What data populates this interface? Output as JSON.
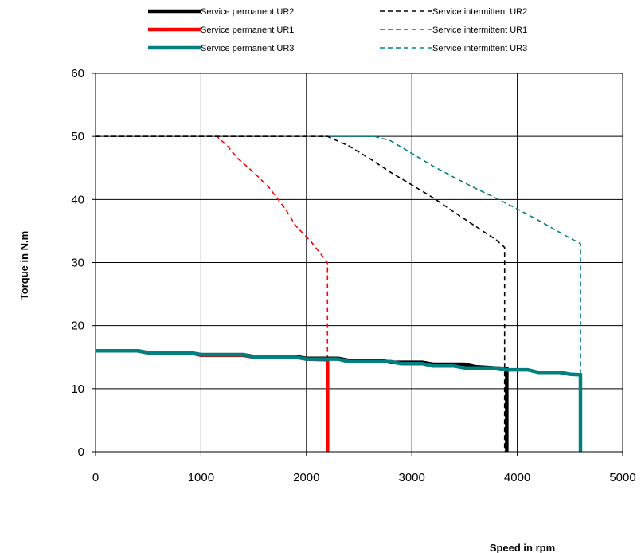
{
  "chart_data": {
    "type": "line",
    "title": "",
    "xlabel": "Speed in rpm",
    "ylabel": "Torque in N.m",
    "xlim": [
      0,
      5000
    ],
    "ylim": [
      0,
      60
    ],
    "x_ticks": [
      0,
      1000,
      2000,
      3000,
      4000,
      5000
    ],
    "y_ticks": [
      0,
      10,
      20,
      30,
      40,
      50,
      60
    ],
    "grid": true,
    "legend_position": "top",
    "series": [
      {
        "name": "Service permanent UR2",
        "color": "#000000",
        "style": "solid",
        "x": [
          0,
          400,
          500,
          900,
          1000,
          1400,
          1500,
          1900,
          2000,
          2300,
          2400,
          2700,
          2800,
          3100,
          3200,
          3500,
          3600,
          3900,
          3900
        ],
        "y": [
          16,
          16,
          15.7,
          15.7,
          15.4,
          15.4,
          15.1,
          15.1,
          14.8,
          14.8,
          14.5,
          14.5,
          14.2,
          14.2,
          13.9,
          13.9,
          13.5,
          13.2,
          0
        ]
      },
      {
        "name": "Service permanent UR1",
        "color": "#ff0000",
        "style": "solid",
        "x": [
          0,
          400,
          500,
          900,
          1000,
          1400,
          1500,
          1900,
          2000,
          2200,
          2200
        ],
        "y": [
          16,
          16,
          15.7,
          15.7,
          15.3,
          15.3,
          15.0,
          15.0,
          14.7,
          14.6,
          0
        ]
      },
      {
        "name": "Service permanent UR3",
        "color": "#008080",
        "style": "solid",
        "x": [
          0,
          400,
          500,
          900,
          1000,
          1400,
          1500,
          1900,
          2000,
          2300,
          2400,
          2800,
          2900,
          3100,
          3200,
          3400,
          3500,
          3800,
          3900,
          4100,
          4200,
          4400,
          4500,
          4600,
          4600
        ],
        "y": [
          16,
          16,
          15.7,
          15.7,
          15.4,
          15.4,
          15.0,
          15.0,
          14.7,
          14.7,
          14.3,
          14.3,
          14.0,
          14.0,
          13.6,
          13.6,
          13.3,
          13.3,
          13.0,
          13.0,
          12.6,
          12.6,
          12.3,
          12.2,
          0
        ]
      },
      {
        "name": "Service intermittent UR2",
        "color": "#000000",
        "style": "dashed",
        "x": [
          0,
          2200,
          2400,
          2600,
          2800,
          3000,
          3200,
          3400,
          3600,
          3800,
          3880,
          3880
        ],
        "y": [
          50,
          50,
          48.5,
          46.5,
          44.3,
          42.3,
          40.3,
          38,
          35.8,
          33.6,
          32.4,
          0
        ]
      },
      {
        "name": "Service intermittent UR1",
        "color": "#ff0000",
        "style": "dashed",
        "x": [
          0,
          1150,
          1250,
          1350,
          1500,
          1650,
          1800,
          1900,
          2050,
          2200,
          2200
        ],
        "y": [
          50,
          50,
          48.5,
          46.5,
          44.3,
          41.8,
          38.5,
          35.8,
          33.2,
          30,
          0
        ]
      },
      {
        "name": "Service intermittent UR3",
        "color": "#008080",
        "style": "dashed",
        "x": [
          0,
          2650,
          2800,
          3000,
          3200,
          3400,
          3600,
          3800,
          4000,
          4200,
          4400,
          4600,
          4600
        ],
        "y": [
          50,
          50,
          49.3,
          47.3,
          45.3,
          43.5,
          41.8,
          40.2,
          38.5,
          36.7,
          34.8,
          33,
          0
        ]
      }
    ]
  }
}
